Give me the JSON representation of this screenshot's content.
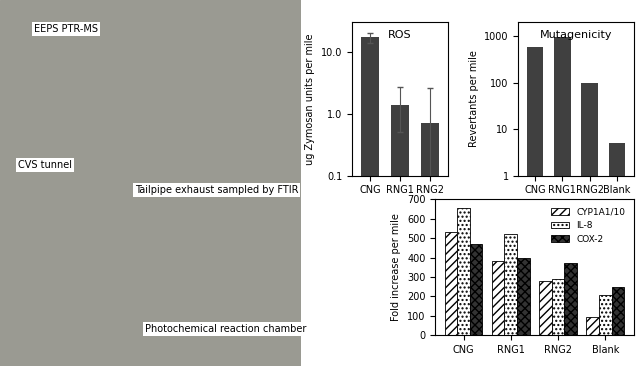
{
  "image_labels": [
    "EEPS PTR-MS",
    "CVS tunnel",
    "Tailpipe exhaust sampled by FTIR",
    "Photochemical reaction chamber"
  ],
  "chart_data": [
    {
      "type": "bar",
      "title": "ROS",
      "ylabel": "ug Zymosan units per mile",
      "categories": [
        "CNG",
        "RNG1",
        "RNG2"
      ],
      "values": [
        17,
        1.4,
        0.7
      ],
      "errors_minus": [
        3,
        0.9,
        0.6
      ],
      "errors_plus": [
        3,
        1.3,
        1.9
      ],
      "color": "#404040",
      "log": "y",
      "ylim": [
        0.1,
        30
      ],
      "yticks": [
        0.1,
        {
          "value": 1,
          "label": "1.0"
        },
        {
          "value": 10,
          "label": "10.0"
        }
      ]
    },
    {
      "type": "bar",
      "title": "Mutagenicity",
      "ylabel": "Revertants per mile",
      "categories": [
        "CNG",
        "RNG1",
        "RNG2",
        "Blank"
      ],
      "values": [
        580,
        950,
        100,
        5
      ],
      "color": "#404040",
      "log": "y",
      "ylim": [
        1,
        2000
      ],
      "yticks": [
        1,
        10,
        100,
        1000
      ]
    },
    {
      "type": "bar",
      "ylabel": "Fold increase per mile",
      "categories": [
        "CNG",
        "RNG1",
        "RNG2",
        "Blank"
      ],
      "series": [
        {
          "name": "CYP1A1/10",
          "color": "#ffffff",
          "values": [
            530,
            380,
            280,
            95
          ]
        },
        {
          "name": "IL-8",
          "color": "#ffffff",
          "values": [
            655,
            520,
            290,
            205
          ]
        },
        {
          "name": "COX-2",
          "color": "#333333",
          "values": [
            470,
            395,
            370,
            250
          ]
        }
      ],
      "legend": "upper right",
      "ylim": [
        0,
        700
      ],
      "yticks": [
        0,
        100,
        200,
        300,
        400,
        500,
        600,
        700
      ]
    }
  ]
}
